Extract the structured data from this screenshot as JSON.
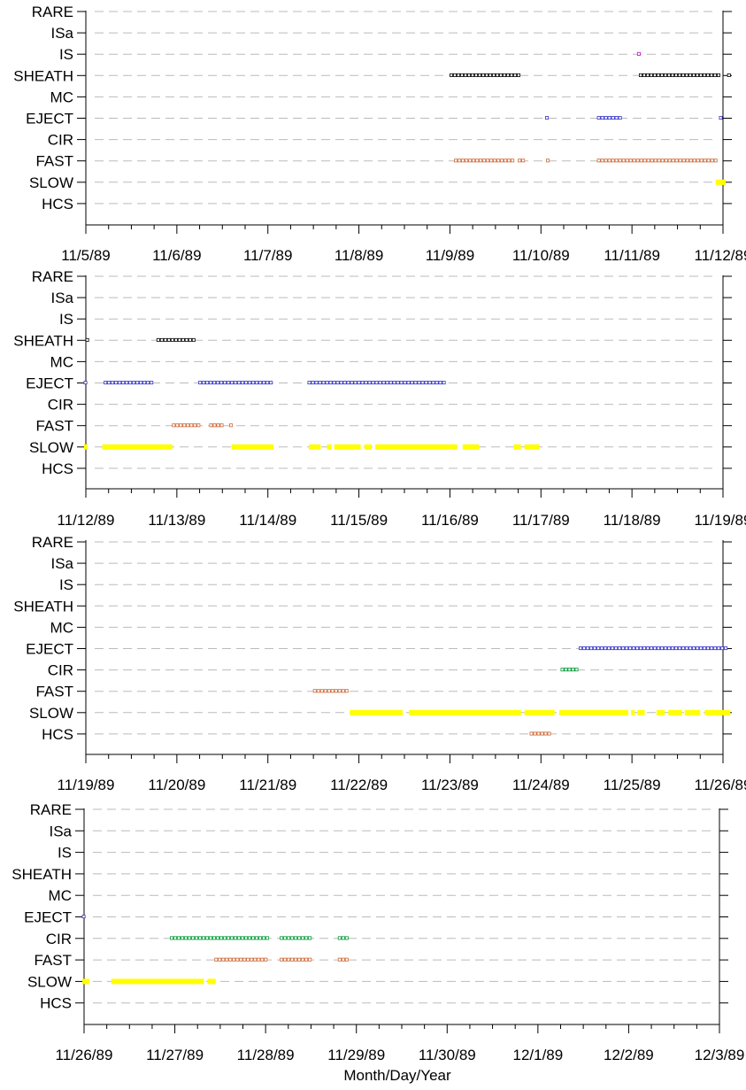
{
  "chart_data": {
    "type": "scatter",
    "title": "",
    "xlabel": "Month/Day/Year",
    "ylabel": "",
    "categories": [
      "RARE",
      "ISa",
      "IS",
      "SHEATH",
      "MC",
      "EJECT",
      "CIR",
      "FAST",
      "SLOW",
      "HCS"
    ],
    "category_colors": {
      "SHEATH": "#000000",
      "IS": "#cc00cc",
      "EJECT": "#3333cc",
      "CIR": "#009933",
      "FAST": "#cc6633",
      "SLOW": "#ffff00",
      "HCS": "#cc6633"
    },
    "grid": "dashed horizontal",
    "panels": [
      {
        "ticks": [
          "11/5/89",
          "11/6/89",
          "11/7/89",
          "11/8/89",
          "11/9/89",
          "11/10/89",
          "11/11/89",
          "11/12/89"
        ],
        "series": [
          {
            "name": "SHEATH",
            "intervals": [
              [
                4.0,
                4.8
              ],
              [
                6.08,
                7.0
              ],
              [
                7.05,
                7.1
              ]
            ]
          },
          {
            "name": "IS",
            "intervals": [
              [
                6.06,
                6.1
              ]
            ]
          },
          {
            "name": "EJECT",
            "intervals": [
              [
                5.05,
                5.1
              ],
              [
                5.62,
                5.92
              ],
              [
                6.96,
                7.0
              ]
            ]
          },
          {
            "name": "FAST",
            "intervals": [
              [
                4.05,
                4.72
              ],
              [
                4.75,
                4.85
              ],
              [
                5.06,
                5.1
              ],
              [
                5.62,
                6.96
              ]
            ]
          },
          {
            "name": "SLOW",
            "intervals": [
              [
                6.92,
                7.03
              ]
            ]
          }
        ]
      },
      {
        "ticks": [
          "11/12/89",
          "11/13/89",
          "11/14/89",
          "11/15/89",
          "11/16/89",
          "11/17/89",
          "11/18/89",
          "11/19/89"
        ],
        "series": [
          {
            "name": "SHEATH",
            "intervals": [
              [
                0.0,
                0.05
              ],
              [
                0.78,
                1.24
              ]
            ]
          },
          {
            "name": "EJECT",
            "intervals": [
              [
                -0.02,
                0.02
              ],
              [
                0.2,
                0.78
              ],
              [
                1.24,
                2.08
              ],
              [
                2.44,
                3.98
              ]
            ]
          },
          {
            "name": "FAST",
            "intervals": [
              [
                0.95,
                1.28
              ],
              [
                1.36,
                1.52
              ],
              [
                1.58,
                1.62
              ]
            ]
          },
          {
            "name": "SLOW",
            "intervals": [
              [
                -0.02,
                0.02
              ],
              [
                0.18,
                0.95
              ],
              [
                1.6,
                2.06
              ],
              [
                2.45,
                2.58
              ],
              [
                2.65,
                2.7
              ],
              [
                2.73,
                3.02
              ],
              [
                3.06,
                3.14
              ],
              [
                3.18,
                4.08
              ],
              [
                4.14,
                4.32
              ],
              [
                4.7,
                4.78
              ],
              [
                4.82,
                4.98
              ]
            ]
          }
        ]
      },
      {
        "ticks": [
          "11/19/89",
          "11/20/89",
          "11/21/89",
          "11/22/89",
          "11/23/89",
          "11/24/89",
          "11/25/89",
          "11/26/89"
        ],
        "series": [
          {
            "name": "EJECT",
            "intervals": [
              [
                5.42,
                7.08
              ]
            ]
          },
          {
            "name": "CIR",
            "intervals": [
              [
                5.22,
                5.42
              ]
            ]
          },
          {
            "name": "FAST",
            "intervals": [
              [
                2.5,
                2.9
              ]
            ]
          },
          {
            "name": "SLOW",
            "intervals": [
              [
                2.9,
                3.48
              ],
              [
                3.55,
                4.78
              ],
              [
                4.82,
                5.15
              ],
              [
                5.2,
                5.96
              ],
              [
                5.99,
                6.03
              ],
              [
                6.06,
                6.14
              ],
              [
                6.27,
                6.36
              ],
              [
                6.4,
                6.55
              ],
              [
                6.58,
                6.75
              ],
              [
                6.8,
                7.08
              ]
            ]
          },
          {
            "name": "HCS",
            "intervals": [
              [
                4.88,
                5.12
              ]
            ]
          }
        ]
      },
      {
        "ticks": [
          "11/26/89",
          "11/27/89",
          "11/28/89",
          "11/29/89",
          "11/30/89",
          "12/1/89",
          "12/2/89",
          "12/3/89"
        ],
        "series": [
          {
            "name": "EJECT",
            "intervals": [
              [
                -0.02,
                0.05
              ]
            ]
          },
          {
            "name": "CIR",
            "intervals": [
              [
                0.95,
                2.06
              ],
              [
                2.16,
                2.52
              ],
              [
                2.8,
                2.95
              ]
            ]
          },
          {
            "name": "FAST",
            "intervals": [
              [
                1.44,
                2.06
              ],
              [
                2.16,
                2.52
              ],
              [
                2.8,
                2.95
              ]
            ]
          },
          {
            "name": "SLOW",
            "intervals": [
              [
                -0.02,
                0.06
              ],
              [
                0.3,
                1.32
              ],
              [
                1.36,
                1.45
              ]
            ]
          }
        ]
      }
    ]
  }
}
